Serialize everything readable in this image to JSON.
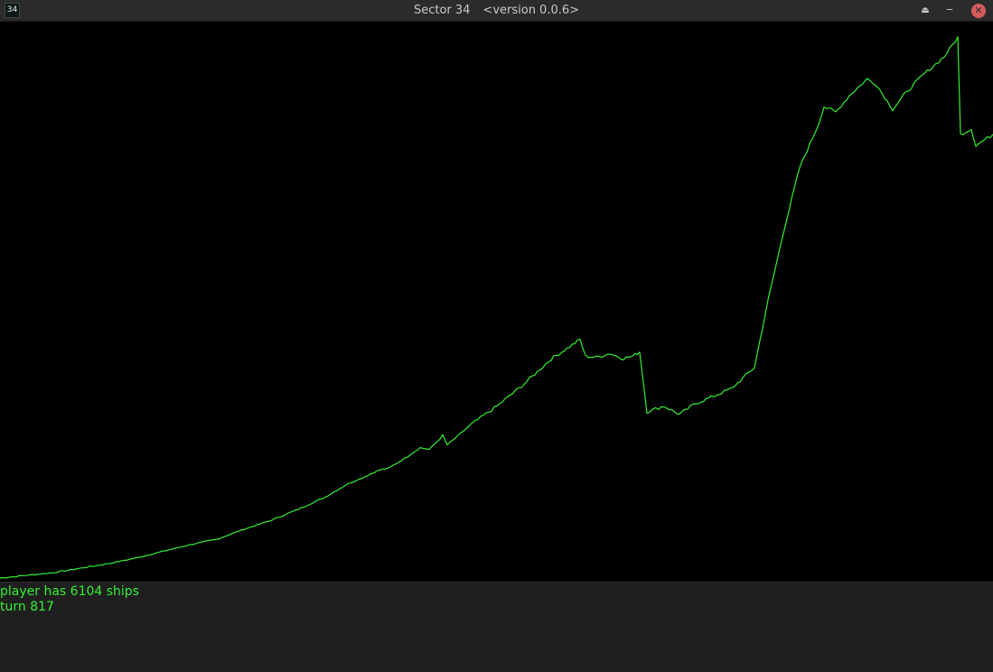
{
  "window": {
    "icon_label": "34",
    "title": "Sector 34",
    "version": "<version 0.0.6>",
    "buttons": {
      "up": "⏏",
      "minimize": "‒",
      "close": "✕"
    }
  },
  "status": {
    "ships_text": "player has 6104 ships",
    "turn_text": "turn 817"
  },
  "chart_data": {
    "type": "line",
    "line_color": "#33ee33",
    "grid": false,
    "legend": "none",
    "series": [
      {
        "values": [
          [
            0,
            0.0
          ],
          [
            30,
            0.5
          ],
          [
            60,
            1.0
          ],
          [
            90,
            1.8
          ],
          [
            120,
            2.6
          ],
          [
            150,
            3.6
          ],
          [
            180,
            4.8
          ],
          [
            210,
            6.0
          ],
          [
            240,
            7.0
          ],
          [
            270,
            8.8
          ],
          [
            300,
            10.4
          ],
          [
            330,
            12.4
          ],
          [
            360,
            14.6
          ],
          [
            385,
            17.0
          ],
          [
            400,
            18.0
          ],
          [
            420,
            19.5
          ],
          [
            430,
            19.8
          ],
          [
            450,
            21.8
          ],
          [
            465,
            23.5
          ],
          [
            475,
            23.2
          ],
          [
            490,
            25.6
          ],
          [
            495,
            24.0
          ],
          [
            520,
            27.5
          ],
          [
            550,
            31.0
          ],
          [
            580,
            35.0
          ],
          [
            610,
            39.5
          ],
          [
            642,
            43.0
          ],
          [
            648,
            40.0
          ],
          [
            660,
            39.8
          ],
          [
            675,
            40.5
          ],
          [
            690,
            39.6
          ],
          [
            700,
            40.0
          ],
          [
            708,
            40.8
          ],
          [
            716,
            30.0
          ],
          [
            735,
            31.0
          ],
          [
            752,
            29.5
          ],
          [
            770,
            31.5
          ],
          [
            790,
            32.8
          ],
          [
            810,
            34.2
          ],
          [
            835,
            38.0
          ],
          [
            850,
            50.0
          ],
          [
            868,
            63.0
          ],
          [
            885,
            74.0
          ],
          [
            905,
            81.5
          ],
          [
            912,
            85.0
          ],
          [
            925,
            84.0
          ],
          [
            940,
            87.0
          ],
          [
            960,
            90.0
          ],
          [
            970,
            89.0
          ],
          [
            988,
            84.5
          ],
          [
            1000,
            87.0
          ],
          [
            1020,
            90.5
          ],
          [
            1045,
            94.0
          ],
          [
            1060,
            97.5
          ],
          [
            1063,
            80.0
          ],
          [
            1075,
            81.0
          ],
          [
            1080,
            78.0
          ],
          [
            1099,
            80.0
          ]
        ]
      }
    ],
    "xlim": [
      0,
      1099
    ],
    "ylim": [
      0,
      100
    ]
  }
}
